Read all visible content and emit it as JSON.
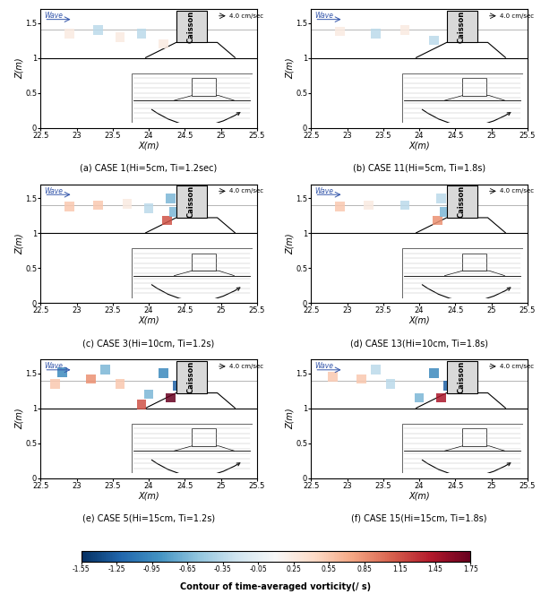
{
  "chart_data": [
    {
      "type": "vector",
      "title": "(a) CASE 1(Hi=5cm, Ti=1.2sec)",
      "xlabel": "X(m)",
      "ylabel": "Z(m)",
      "xlim": [
        22.5,
        25.5
      ],
      "ylim": [
        0,
        1.7
      ],
      "xticks": [
        22.5,
        23,
        23.5,
        24,
        24.5,
        25,
        25.5
      ],
      "yticks": [
        0,
        0.5,
        1,
        1.5
      ],
      "vortices": {
        "x": [
          22.9,
          23.3,
          23.6,
          23.9,
          24.2
        ],
        "z": [
          1.35,
          1.4,
          1.3,
          1.35,
          1.2
        ],
        "vorticity": [
          0.25,
          -0.35,
          0.25,
          -0.35,
          0.25
        ]
      }
    },
    {
      "type": "vector",
      "title": "(b) CASE 11(Hi=5cm, Ti=1.8s)",
      "xlabel": "X(m)",
      "ylabel": "Z(m)",
      "xlim": [
        22.5,
        25.5
      ],
      "ylim": [
        0,
        1.7
      ],
      "xticks": [
        22.5,
        23,
        23.5,
        24,
        24.5,
        25,
        25.5
      ],
      "yticks": [
        0,
        0.5,
        1,
        1.5
      ],
      "vortices": {
        "x": [
          22.9,
          23.4,
          23.8,
          24.2
        ],
        "z": [
          1.38,
          1.35,
          1.4,
          1.25
        ],
        "vorticity": [
          0.25,
          -0.35,
          0.25,
          -0.35
        ]
      }
    },
    {
      "type": "vector",
      "title": "(c) CASE 3(Hi=10cm, Ti=1.2s)",
      "xlabel": "X(m)",
      "ylabel": "Z(m)",
      "xlim": [
        22.5,
        25.5
      ],
      "ylim": [
        0,
        1.7
      ],
      "xticks": [
        22.5,
        23,
        23.5,
        24,
        24.5,
        25,
        25.5
      ],
      "yticks": [
        0,
        0.5,
        1,
        1.5
      ],
      "vortices": {
        "x": [
          22.9,
          23.3,
          23.7,
          24.0,
          24.25,
          24.35,
          24.3
        ],
        "z": [
          1.38,
          1.4,
          1.42,
          1.35,
          1.18,
          1.3,
          1.5
        ],
        "vorticity": [
          0.55,
          0.55,
          0.25,
          -0.35,
          1.15,
          -0.65,
          -0.65
        ]
      }
    },
    {
      "type": "vector",
      "title": "(d) CASE 13(Hi=10cm, Ti=1.8s)",
      "xlabel": "X(m)",
      "ylabel": "Z(m)",
      "xlim": [
        22.5,
        25.5
      ],
      "ylim": [
        0,
        1.7
      ],
      "xticks": [
        22.5,
        23,
        23.5,
        24,
        24.5,
        25,
        25.5
      ],
      "yticks": [
        0,
        0.5,
        1,
        1.5
      ],
      "vortices": {
        "x": [
          22.9,
          23.3,
          23.8,
          24.25,
          24.35,
          24.3
        ],
        "z": [
          1.38,
          1.4,
          1.4,
          1.18,
          1.3,
          1.5
        ],
        "vorticity": [
          0.55,
          0.25,
          -0.35,
          0.85,
          -0.65,
          -0.35
        ]
      }
    },
    {
      "type": "vector",
      "title": "(e) CASE 5(Hi=15cm, Ti=1.2s)",
      "xlabel": "X(m)",
      "ylabel": "Z(m)",
      "xlim": [
        22.5,
        25.5
      ],
      "ylim": [
        0,
        1.7
      ],
      "xticks": [
        22.5,
        23,
        23.5,
        24,
        24.5,
        25,
        25.5
      ],
      "yticks": [
        0,
        0.5,
        1,
        1.5
      ],
      "vortices": {
        "x": [
          22.8,
          23.2,
          23.6,
          23.9,
          24.0,
          24.3,
          24.4,
          24.2,
          22.7,
          23.4
        ],
        "z": [
          1.52,
          1.42,
          1.35,
          1.05,
          1.2,
          1.15,
          1.32,
          1.5,
          1.35,
          1.55
        ],
        "vorticity": [
          -0.95,
          0.85,
          0.55,
          1.15,
          -0.65,
          1.75,
          -1.25,
          -0.95,
          0.55,
          -0.65
        ]
      }
    },
    {
      "type": "vector",
      "title": "(f) CASE 15(Hi=15cm, Ti=1.8s)",
      "xlabel": "X(m)",
      "ylabel": "Z(m)",
      "xlim": [
        22.5,
        25.5
      ],
      "ylim": [
        0,
        1.7
      ],
      "xticks": [
        22.5,
        23,
        23.5,
        24,
        24.5,
        25,
        25.5
      ],
      "yticks": [
        0,
        0.5,
        1,
        1.5
      ],
      "vortices": {
        "x": [
          22.8,
          23.2,
          23.6,
          24.0,
          24.3,
          24.4,
          24.2,
          23.4
        ],
        "z": [
          1.45,
          1.42,
          1.35,
          1.15,
          1.15,
          1.32,
          1.5,
          1.55
        ],
        "vorticity": [
          0.55,
          0.55,
          -0.35,
          -0.65,
          1.45,
          -1.25,
          -0.95,
          -0.35
        ]
      }
    }
  ],
  "annotations": {
    "wave": "Wave",
    "structure": "Caisson"
  },
  "reference_vector": {
    "value": 4.0,
    "label": "4.0 cm/sec"
  },
  "colorbar": {
    "label": "Contour of time-averaged vorticity(/ s)",
    "range": [
      -1.55,
      1.75
    ],
    "ticks": [
      -1.55,
      -1.25,
      -0.95,
      -0.65,
      -0.35,
      -0.05,
      0.25,
      0.55,
      0.85,
      1.15,
      1.45,
      1.75
    ]
  }
}
